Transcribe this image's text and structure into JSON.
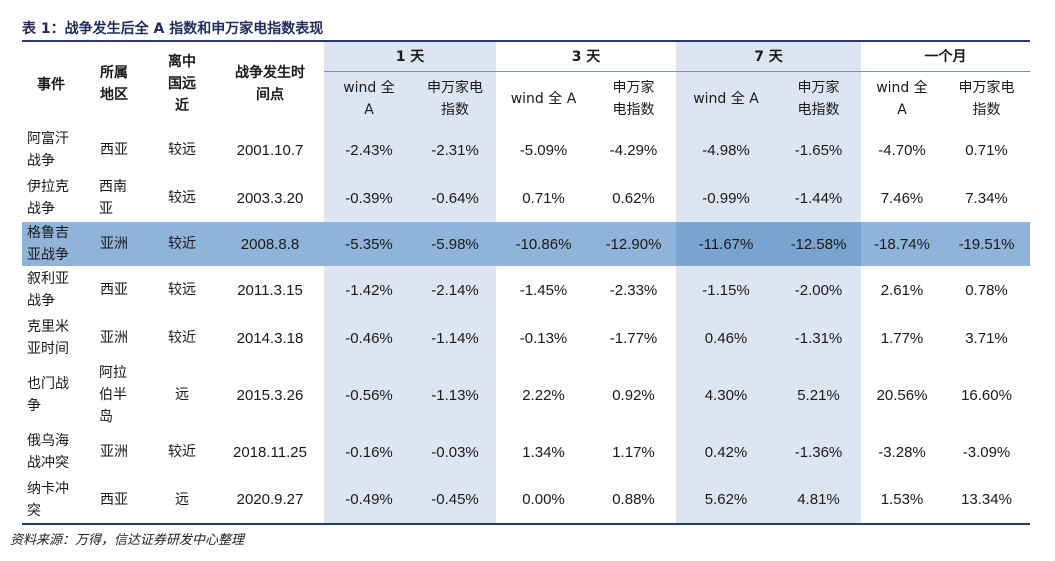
{
  "title": "表 1：战争发生后全 A 指数和申万家电指数表现",
  "source": "资料来源：万得，信达证券研发中心整理",
  "headers": {
    "event": "事件",
    "region": "所属地区",
    "distance": "离中国远近",
    "date": "战争发生时间点",
    "groups": [
      "1 天",
      "3 天",
      "7 天",
      "一个月"
    ],
    "sub": [
      "wind 全 A",
      "申万家电指数"
    ]
  },
  "rows": [
    {
      "event": "阿富汗战争",
      "region": "西亚",
      "distance": "较远",
      "date": "2001.10.7",
      "values": [
        "-2.43%",
        "-2.31%",
        "-5.09%",
        "-4.29%",
        "-4.98%",
        "-1.65%",
        "-4.70%",
        "0.71%"
      ]
    },
    {
      "event": "伊拉克战争",
      "region": "西南亚",
      "distance": "较远",
      "date": "2003.3.20",
      "values": [
        "-0.39%",
        "-0.64%",
        "0.71%",
        "0.62%",
        "-0.99%",
        "-1.44%",
        "7.46%",
        "7.34%"
      ]
    },
    {
      "event": "格鲁吉亚战争",
      "region": "亚洲",
      "distance": "较近",
      "date": "2008.8.8",
      "values": [
        "-5.35%",
        "-5.98%",
        "-10.86%",
        "-12.90%",
        "-11.67%",
        "-12.58%",
        "-18.74%",
        "-19.51%"
      ]
    },
    {
      "event": "叙利亚战争",
      "region": "西亚",
      "distance": "较远",
      "date": "2011.3.15",
      "values": [
        "-1.42%",
        "-2.14%",
        "-1.45%",
        "-2.33%",
        "-1.15%",
        "-2.00%",
        "2.61%",
        "0.78%"
      ]
    },
    {
      "event": "克里米亚时间",
      "region": "亚洲",
      "distance": "较近",
      "date": "2014.3.18",
      "values": [
        "-0.46%",
        "-1.14%",
        "-0.13%",
        "-1.77%",
        "0.46%",
        "-1.31%",
        "1.77%",
        "3.71%"
      ]
    },
    {
      "event": "也门战争",
      "region": "阿拉伯半岛",
      "distance": "远",
      "date": "2015.3.26",
      "values": [
        "-0.56%",
        "-1.13%",
        "2.22%",
        "0.92%",
        "4.30%",
        "5.21%",
        "20.56%",
        "16.60%"
      ]
    },
    {
      "event": "俄乌海战冲突",
      "region": "亚洲",
      "distance": "较近",
      "date": "2018.11.25",
      "values": [
        "-0.16%",
        "-0.03%",
        "1.34%",
        "1.17%",
        "0.42%",
        "-1.36%",
        "-3.28%",
        "-3.09%"
      ]
    },
    {
      "event": "纳卡冲突",
      "region": "西亚",
      "distance": "远",
      "date": "2020.9.27",
      "values": [
        "-0.49%",
        "-0.45%",
        "0.00%",
        "0.88%",
        "5.62%",
        "4.81%",
        "1.53%",
        "13.34%"
      ]
    }
  ],
  "highlight_row_index": 2,
  "colors": {
    "title": "#1f2d5a",
    "rule": "#2a3a6e",
    "shade": "#dde5f3",
    "highlight": "#8fb3d9"
  }
}
